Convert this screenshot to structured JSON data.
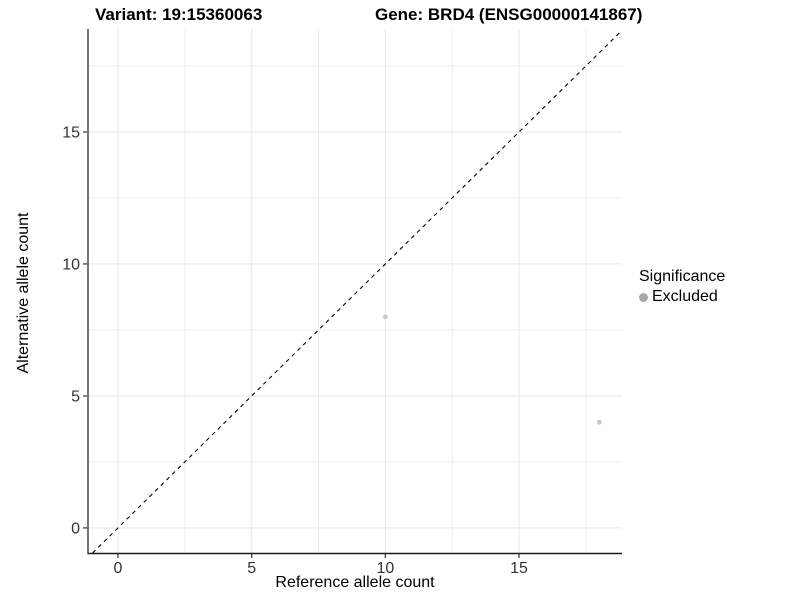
{
  "figure": {
    "title_left": "Variant: 19:15360063",
    "title_right": "Gene: BRD4 (ENSG00000141867)"
  },
  "chart_data": {
    "type": "scatter",
    "title": "Variant: 19:15360063 / Gene: BRD4 (ENSG00000141867)",
    "xlabel": "Reference allele count",
    "ylabel": "Alternative allele count",
    "xlim": [
      -1.12,
      18.85
    ],
    "ylim": [
      -0.95,
      18.9
    ],
    "xticks": [
      0,
      5,
      10,
      15
    ],
    "yticks": [
      0,
      5,
      10,
      15
    ],
    "xminor": [
      2.5,
      7.5,
      12.5,
      17.5
    ],
    "yminor": [
      2.5,
      7.5,
      12.5,
      17.5
    ],
    "grid": true,
    "legend_position": "right",
    "series": [
      {
        "name": "Excluded",
        "points": [
          {
            "x": 10,
            "y": 8
          },
          {
            "x": 18,
            "y": 4
          }
        ]
      }
    ],
    "identity_line": {
      "slope": 1,
      "intercept": 0,
      "style": "dashed"
    },
    "colors": {
      "point": "#c6c6c6",
      "legend_key": "#a8a8a8",
      "grid": "#ebebeb",
      "axis_line": "#1a1a1a",
      "tick_mark": "#333333",
      "tick_label": "#333333",
      "identity_line": "#000000"
    },
    "legend": {
      "title": "Significance",
      "items": [
        {
          "label": "Excluded",
          "color": "#a8a8a8"
        }
      ]
    }
  }
}
